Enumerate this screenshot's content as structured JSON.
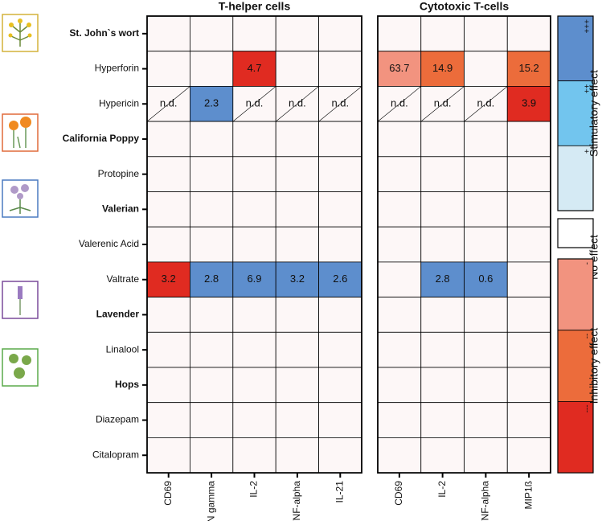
{
  "rows": [
    {
      "label": "St. John`s wort",
      "bold": true
    },
    {
      "label": "Hyperforin",
      "bold": false
    },
    {
      "label": "Hypericin",
      "bold": false
    },
    {
      "label": "California Poppy",
      "bold": true
    },
    {
      "label": "Protopine",
      "bold": false
    },
    {
      "label": "Valerian",
      "bold": true
    },
    {
      "label": "Valerenic Acid",
      "bold": false
    },
    {
      "label": "Valtrate",
      "bold": false
    },
    {
      "label": "Lavender",
      "bold": true
    },
    {
      "label": "Linalool",
      "bold": false
    },
    {
      "label": "Hops",
      "bold": true
    },
    {
      "label": "Diazepam",
      "bold": false
    },
    {
      "label": "Citalopram",
      "bold": false
    }
  ],
  "panels": [
    {
      "title": "T-helper cells",
      "columns": [
        "CD69",
        "IFN gamma",
        "IL-2",
        "TNF-alpha",
        "IL-21"
      ],
      "cells": [
        [
          null,
          null,
          null,
          null,
          null
        ],
        [
          null,
          null,
          {
            "value": 4.7,
            "level": 5
          },
          null,
          null
        ],
        [
          "n.d.",
          {
            "value": 2.3,
            "level": 0
          },
          "n.d.",
          "n.d.",
          "n.d."
        ],
        [
          null,
          null,
          null,
          null,
          null
        ],
        [
          null,
          null,
          null,
          null,
          null
        ],
        [
          null,
          null,
          null,
          null,
          null
        ],
        [
          null,
          null,
          null,
          null,
          null
        ],
        [
          {
            "value": 3.2,
            "level": 5
          },
          {
            "value": 2.8,
            "level": 0
          },
          {
            "value": 6.9,
            "level": 0
          },
          {
            "value": 3.2,
            "level": 0
          },
          {
            "value": 2.6,
            "level": 0
          }
        ],
        [
          null,
          null,
          null,
          null,
          null
        ],
        [
          null,
          null,
          null,
          null,
          null
        ],
        [
          null,
          null,
          null,
          null,
          null
        ],
        [
          null,
          null,
          null,
          null,
          null
        ],
        [
          null,
          null,
          null,
          null,
          null
        ]
      ]
    },
    {
      "title": "Cytotoxic T-cells",
      "columns": [
        "CD69",
        "IL-2",
        "TNF-alpha",
        "MIP1ß"
      ],
      "cells": [
        [
          null,
          null,
          null,
          null
        ],
        [
          {
            "value": 63.7,
            "level": 3
          },
          {
            "value": 14.9,
            "level": 4
          },
          null,
          {
            "value": 15.2,
            "level": 4
          }
        ],
        [
          "n.d.",
          "n.d.",
          "n.d.",
          {
            "value": 3.9,
            "level": 5
          }
        ],
        [
          null,
          null,
          null,
          null
        ],
        [
          null,
          null,
          null,
          null
        ],
        [
          null,
          null,
          null,
          null
        ],
        [
          null,
          null,
          null,
          null
        ],
        [
          null,
          {
            "value": 2.8,
            "level": 0
          },
          {
            "value": 0.6,
            "level": 0
          },
          null
        ],
        [
          null,
          null,
          null,
          null
        ],
        [
          null,
          null,
          null,
          null
        ],
        [
          null,
          null,
          null,
          null
        ],
        [
          null,
          null,
          null,
          null
        ],
        [
          null,
          null,
          null,
          null
        ]
      ]
    }
  ],
  "legend": {
    "levels": [
      {
        "label": "+++",
        "color": "#5d8ecd"
      },
      {
        "label": "++",
        "color": "#72c5ee"
      },
      {
        "label": "+",
        "color": "#d5eaf4"
      },
      {
        "label": "-",
        "color": "#f2937f"
      },
      {
        "label": "--",
        "color": "#ec6c3b"
      },
      {
        "label": "---",
        "color": "#e02b21"
      }
    ],
    "groups": [
      {
        "label": "Stimulatory effect",
        "levels": [
          0,
          1,
          2
        ]
      },
      {
        "label": "No effect",
        "levels": []
      },
      {
        "label": "Inhibitory effect",
        "levels": [
          3,
          4,
          5
        ]
      }
    ]
  }
}
